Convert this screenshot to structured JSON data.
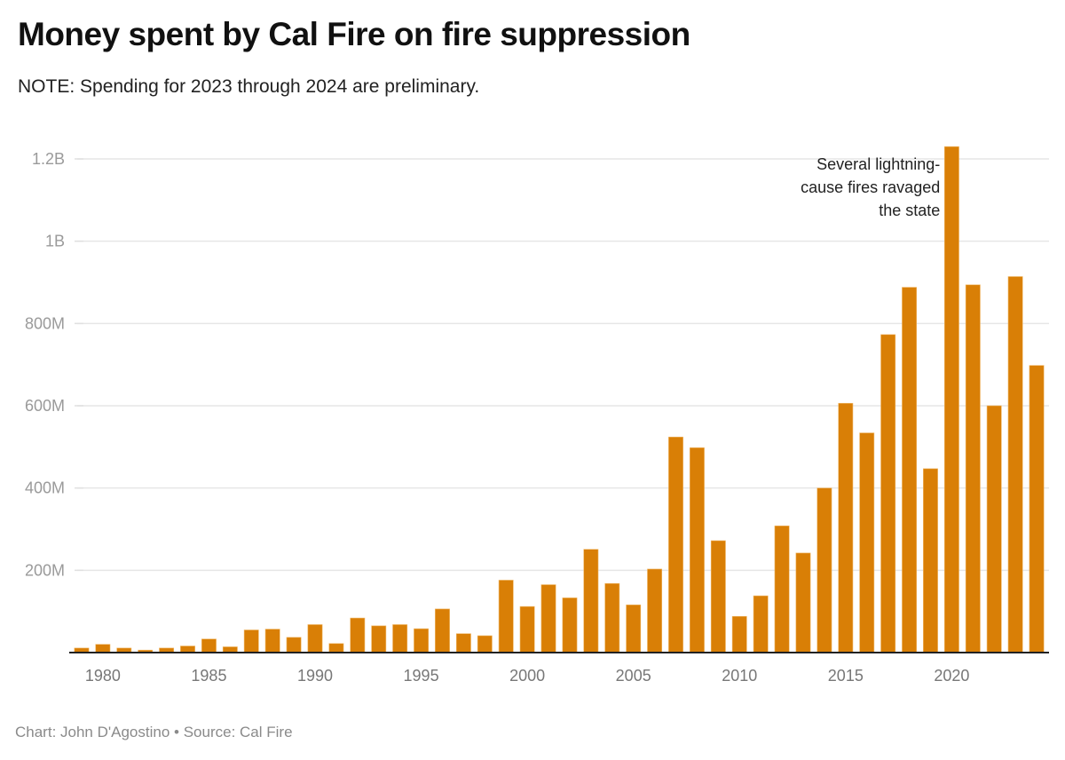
{
  "title": "Money spent by Cal Fire on fire suppression",
  "subtitle": "NOTE: Spending for 2023 through 2024 are preliminary.",
  "footer": {
    "credit": "Chart: John D'Agostino",
    "separator": "•",
    "source": "Source: Cal Fire"
  },
  "colors": {
    "bar": "#d97f06",
    "gridline": "#e6e6e6",
    "axis": "#222222"
  },
  "chart_data": {
    "type": "bar",
    "title": "Money spent by Cal Fire on fire suppression",
    "subtitle": "NOTE: Spending for 2023 through 2024 are preliminary.",
    "xlabel": "",
    "ylabel": "",
    "unit": "USD (millions)",
    "ylim": [
      0,
      1230
    ],
    "grid": true,
    "legend": "none",
    "y_ticks": [
      {
        "value": 200,
        "label": "200M"
      },
      {
        "value": 400,
        "label": "400M"
      },
      {
        "value": 600,
        "label": "600M"
      },
      {
        "value": 800,
        "label": "800M"
      },
      {
        "value": 1000,
        "label": "1B"
      },
      {
        "value": 1200,
        "label": "1.2B"
      }
    ],
    "x_ticks": [
      "1980",
      "1985",
      "1990",
      "1995",
      "2000",
      "2005",
      "2010",
      "2015",
      "2020"
    ],
    "categories": [
      "1979",
      "1980",
      "1981",
      "1982",
      "1983",
      "1984",
      "1985",
      "1986",
      "1987",
      "1988",
      "1989",
      "1990",
      "1991",
      "1992",
      "1993",
      "1994",
      "1995",
      "1996",
      "1997",
      "1998",
      "1999",
      "2000",
      "2001",
      "2002",
      "2003",
      "2004",
      "2005",
      "2006",
      "2007",
      "2008",
      "2009",
      "2010",
      "2011",
      "2012",
      "2013",
      "2014",
      "2015",
      "2016",
      "2017",
      "2018",
      "2019",
      "2020",
      "2021",
      "2022",
      "2023",
      "2024"
    ],
    "values": [
      11,
      20,
      11,
      6,
      11,
      16,
      33,
      14,
      55,
      57,
      37,
      68,
      22,
      84,
      65,
      68,
      58,
      106,
      46,
      41,
      176,
      112,
      165,
      133,
      251,
      168,
      116,
      203,
      524,
      498,
      272,
      88,
      138,
      308,
      242,
      400,
      606,
      534,
      773,
      888,
      447,
      1230,
      894,
      600,
      914,
      698
    ],
    "annotations": [
      {
        "category": "2020",
        "lines": [
          "Several lightning-",
          "cause fires ravaged",
          "the state"
        ]
      }
    ]
  }
}
